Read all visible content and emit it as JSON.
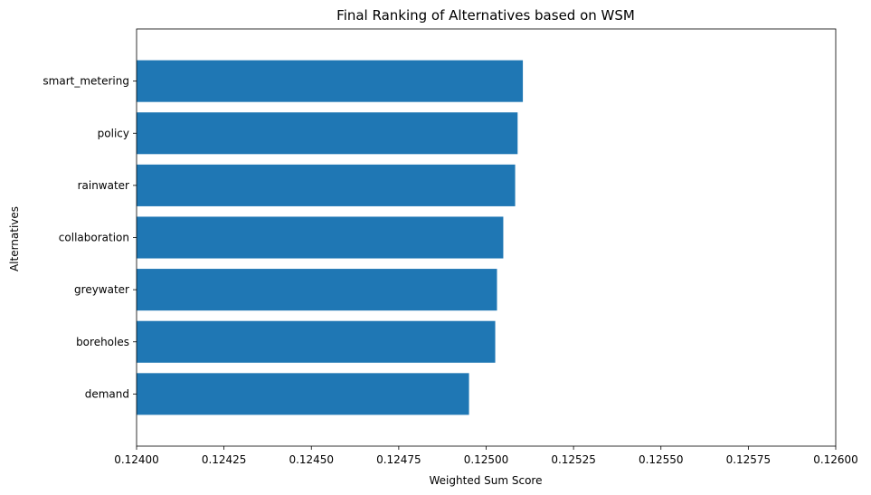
{
  "chart_data": {
    "type": "bar",
    "orientation": "horizontal",
    "title": "Final Ranking of Alternatives based on WSM",
    "xlabel": "Weighted Sum Score",
    "ylabel": "Alternatives",
    "categories": [
      "demand",
      "boreholes",
      "greywater",
      "collaboration",
      "rainwater",
      "policy",
      "smart_metering"
    ],
    "values": [
      0.124951,
      0.125026,
      0.125031,
      0.125049,
      0.125083,
      0.12509,
      0.125105
    ],
    "xlim": [
      0.124,
      0.126
    ],
    "xticks": [
      "0.12400",
      "0.12425",
      "0.12450",
      "0.12475",
      "0.12500",
      "0.12525",
      "0.12550",
      "0.12575",
      "0.12600"
    ],
    "bar_color": "#1f77b4",
    "grid": false,
    "legend": "none"
  }
}
